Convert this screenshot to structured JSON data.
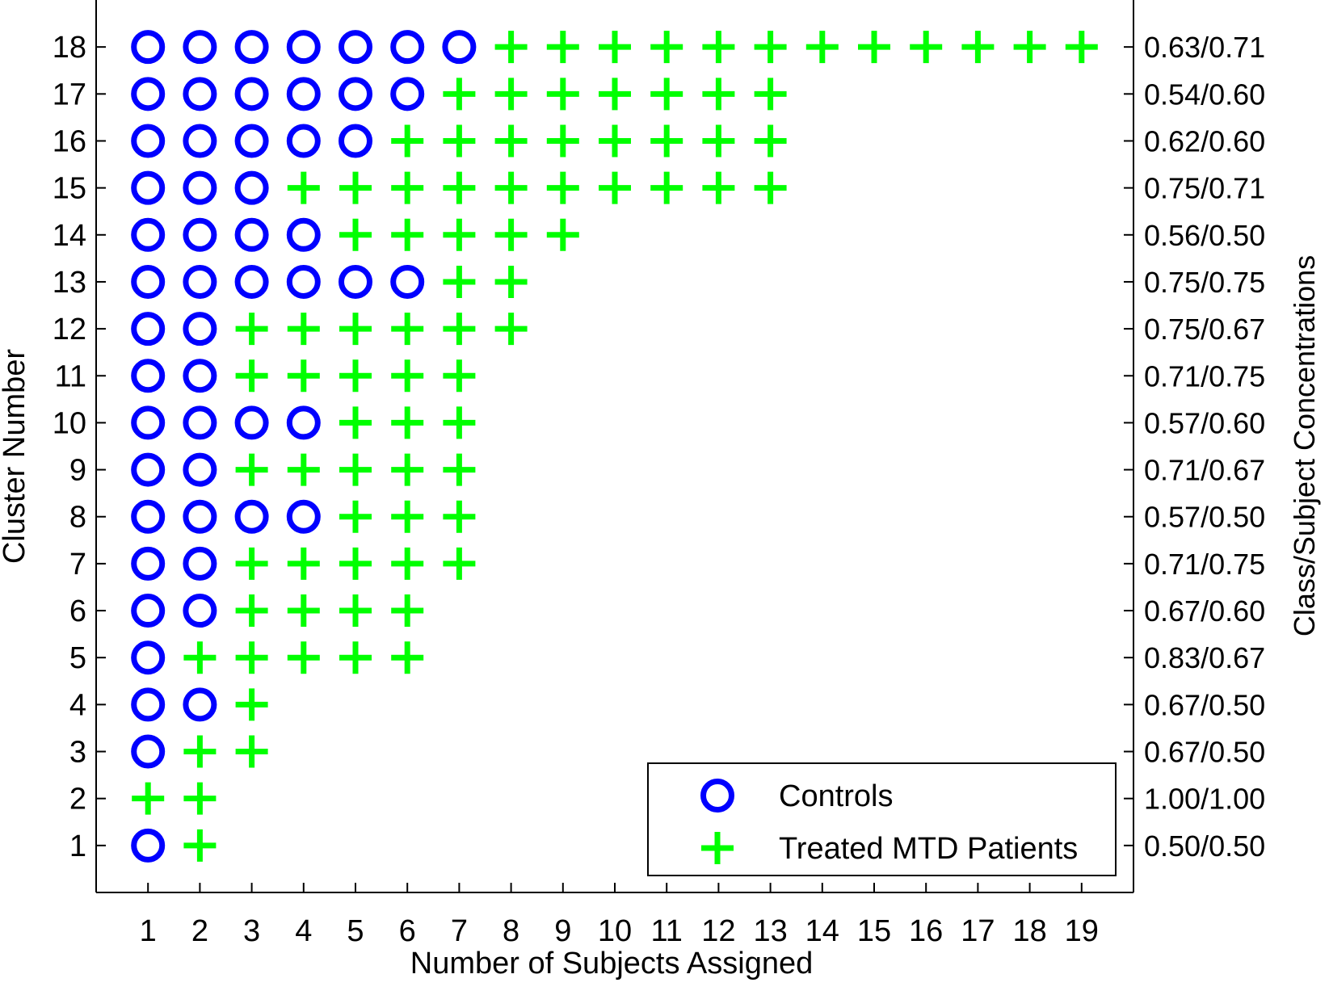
{
  "chart_data": {
    "type": "scatter",
    "title": "",
    "xlabel": "Number of Subjects Assigned",
    "ylabel": "Cluster Number",
    "y2label": "Class/Subject Concentrations",
    "xlim": [
      0,
      20
    ],
    "ylim": [
      0,
      19
    ],
    "x_ticks": [
      1,
      2,
      3,
      4,
      5,
      6,
      7,
      8,
      9,
      10,
      11,
      12,
      13,
      14,
      15,
      16,
      17,
      18,
      19
    ],
    "y_ticks": [
      1,
      2,
      3,
      4,
      5,
      6,
      7,
      8,
      9,
      10,
      11,
      12,
      13,
      14,
      15,
      16,
      17,
      18
    ],
    "grid": false,
    "legend_position": "bottom-right",
    "series": [
      {
        "name": "Controls",
        "marker": "circle",
        "color": "#0000ff",
        "counts_per_cluster": [
          1,
          0,
          1,
          2,
          1,
          2,
          2,
          4,
          2,
          4,
          2,
          2,
          6,
          4,
          3,
          5,
          6,
          7
        ]
      },
      {
        "name": "Treated MTD Patients",
        "marker": "plus",
        "color": "#00ff00",
        "counts_per_cluster": [
          1,
          2,
          2,
          1,
          5,
          4,
          5,
          3,
          5,
          3,
          5,
          6,
          2,
          5,
          10,
          8,
          7,
          12
        ]
      }
    ],
    "clusters": [
      1,
      2,
      3,
      4,
      5,
      6,
      7,
      8,
      9,
      10,
      11,
      12,
      13,
      14,
      15,
      16,
      17,
      18
    ],
    "right_axis_labels": [
      "0.50/0.50",
      "1.00/1.00",
      "0.67/0.50",
      "0.67/0.50",
      "0.83/0.67",
      "0.67/0.60",
      "0.71/0.75",
      "0.57/0.50",
      "0.71/0.67",
      "0.57/0.60",
      "0.71/0.75",
      "0.75/0.67",
      "0.75/0.75",
      "0.56/0.50",
      "0.75/0.71",
      "0.62/0.60",
      "0.54/0.60",
      "0.63/0.71"
    ]
  }
}
